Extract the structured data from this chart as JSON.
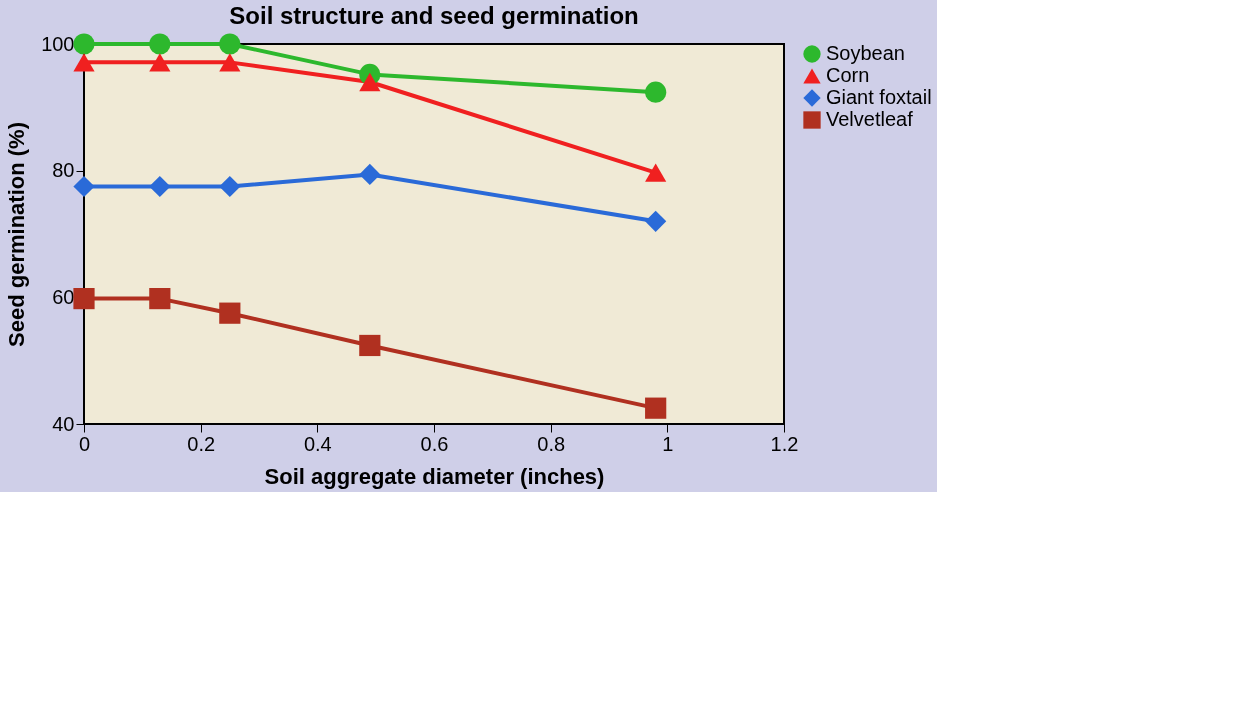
{
  "chart_data": {
    "type": "line",
    "title": "Soil structure and seed germination",
    "xlabel": "Soil aggregate diameter (inches)",
    "ylabel": "Seed germination (%)",
    "x": [
      0,
      0.13,
      0.25,
      0.49,
      0.98
    ],
    "series": [
      {
        "name": "Soybean",
        "color": "#2db82d",
        "marker": "circle",
        "values": [
          100,
          100,
          100,
          95.2,
          92.4
        ]
      },
      {
        "name": "Corn",
        "color": "#f02020",
        "marker": "triangle",
        "values": [
          97.1,
          97.1,
          97.1,
          94,
          79.7
        ]
      },
      {
        "name": "Giant foxtail",
        "color": "#2a6ad8",
        "marker": "diamond",
        "values": [
          77.5,
          77.5,
          77.5,
          79.4,
          72
        ]
      },
      {
        "name": "Velvetleaf",
        "color": "#b03020",
        "marker": "square",
        "values": [
          59.8,
          59.8,
          57.5,
          52.4,
          42.5
        ]
      }
    ],
    "xlim": [
      0,
      1.2
    ],
    "xticks": [
      0,
      0.2,
      0.4,
      0.6,
      0.8,
      1,
      1.2
    ],
    "ylim": [
      40,
      100
    ],
    "yticks": [
      40,
      60,
      80,
      100
    ],
    "grid": false,
    "legend": "right",
    "line_style": "solid"
  }
}
